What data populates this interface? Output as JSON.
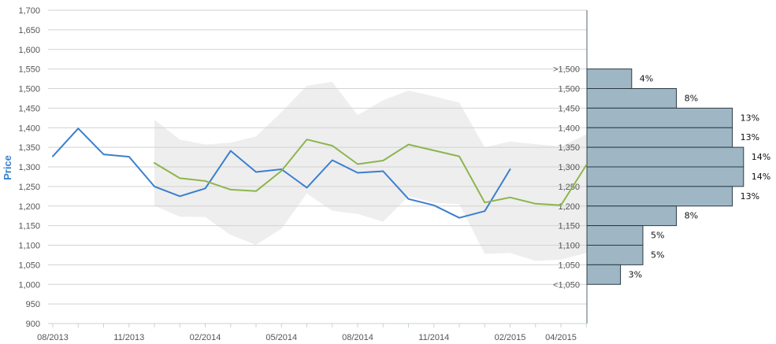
{
  "chart_data": {
    "type": "line",
    "ylabel": "Price",
    "ylim": [
      900,
      1700
    ],
    "y_ticks": [
      900,
      950,
      1000,
      1050,
      1100,
      1150,
      1200,
      1250,
      1300,
      1350,
      1400,
      1450,
      1500,
      1550,
      1600,
      1650,
      1700
    ],
    "y_tick_labels": [
      "900",
      "950",
      "1,000",
      "1,050",
      "1,100",
      "1,150",
      "1,200",
      "1,250",
      "1,300",
      "1,350",
      "1,400",
      "1,450",
      "1,500",
      "1,550",
      "1,600",
      "1,650",
      "1,700"
    ],
    "x_tick_labels": [
      "08/2013",
      "11/2013",
      "02/2014",
      "05/2014",
      "08/2014",
      "11/2014",
      "02/2015",
      "04/2015"
    ],
    "x_tick_label_months": [
      "2013-08",
      "2013-11",
      "2014-02",
      "2014-05",
      "2014-08",
      "2014-11",
      "2015-02",
      "2015-04"
    ],
    "grid": true,
    "colors": {
      "blue_series": "#3a7fce",
      "green_series": "#8db54e",
      "band_fill": "#ebebeb",
      "histogram_fill": "#9fb7c5",
      "histogram_stroke": "#2b3a44",
      "grid": "#d2d2d2",
      "axis_title": "#3a7fce"
    },
    "series": [
      {
        "type": "line",
        "x": [
          "2013-08",
          "2013-09",
          "2013-10",
          "2013-11",
          "2013-12",
          "2014-01",
          "2014-02",
          "2014-03",
          "2014-04",
          "2014-05",
          "2014-06",
          "2014-07",
          "2014-08",
          "2014-09",
          "2014-10",
          "2014-11",
          "2014-12",
          "2015-01",
          "2015-02"
        ],
        "values": [
          1327,
          1398,
          1332,
          1326,
          1250,
          1225,
          1245,
          1341,
          1287,
          1294,
          1247,
          1317,
          1285,
          1289,
          1218,
          1202,
          1170,
          1187,
          1294
        ]
      },
      {
        "type": "line",
        "x": [
          "2013-12",
          "2014-01",
          "2014-02",
          "2014-03",
          "2014-04",
          "2014-05",
          "2014-06",
          "2014-07",
          "2014-08",
          "2014-09",
          "2014-10",
          "2014-11",
          "2014-12",
          "2015-01",
          "2015-02",
          "2015-03",
          "2015-04",
          "2015-05"
        ],
        "values": [
          1310,
          1271,
          1264,
          1242,
          1238,
          1290,
          1370,
          1354,
          1307,
          1316,
          1357,
          1342,
          1327,
          1209,
          1222,
          1206,
          1202,
          1305
        ]
      },
      {
        "type": "area",
        "x": [
          "2013-12",
          "2014-01",
          "2014-02",
          "2014-03",
          "2014-04",
          "2014-05",
          "2014-06",
          "2014-07",
          "2014-08",
          "2014-09",
          "2014-10",
          "2014-11",
          "2014-12",
          "2015-01",
          "2015-02",
          "2015-03",
          "2015-04",
          "2015-05"
        ],
        "upper": [
          1420,
          1370,
          1357,
          1362,
          1378,
          1440,
          1507,
          1517,
          1432,
          1470,
          1495,
          1480,
          1464,
          1350,
          1365,
          1358,
          1352,
          1383
        ],
        "lower": [
          1201,
          1173,
          1172,
          1126,
          1101,
          1142,
          1232,
          1188,
          1180,
          1160,
          1225,
          1208,
          1205,
          1078,
          1080,
          1060,
          1063,
          1080
        ]
      }
    ],
    "histogram": {
      "type": "bar",
      "orientation": "horizontal",
      "category_labels": [
        ">1,500",
        "1,500",
        "1,450",
        "1,400",
        "1,350",
        "1,300",
        "1,250",
        "1,200",
        "1,150",
        "1,100",
        "1,050",
        "<1,050"
      ],
      "category_positions": [
        1550,
        1500,
        1450,
        1400,
        1350,
        1300,
        1250,
        1200,
        1150,
        1100,
        1050,
        1000
      ],
      "bins": [
        {
          "from": 1500,
          "to": 1550,
          "value": 4,
          "label": "4%"
        },
        {
          "from": 1450,
          "to": 1500,
          "value": 8,
          "label": "8%"
        },
        {
          "from": 1400,
          "to": 1450,
          "value": 13,
          "label": "13%"
        },
        {
          "from": 1350,
          "to": 1400,
          "value": 13,
          "label": "13%"
        },
        {
          "from": 1300,
          "to": 1350,
          "value": 14,
          "label": "14%"
        },
        {
          "from": 1250,
          "to": 1300,
          "value": 14,
          "label": "14%"
        },
        {
          "from": 1200,
          "to": 1250,
          "value": 13,
          "label": "13%"
        },
        {
          "from": 1150,
          "to": 1200,
          "value": 8,
          "label": "8%"
        },
        {
          "from": 1100,
          "to": 1150,
          "value": 5,
          "label": "5%"
        },
        {
          "from": 1050,
          "to": 1100,
          "value": 5,
          "label": "5%"
        },
        {
          "from": 1000,
          "to": 1050,
          "value": 3,
          "label": "3%"
        }
      ]
    }
  }
}
